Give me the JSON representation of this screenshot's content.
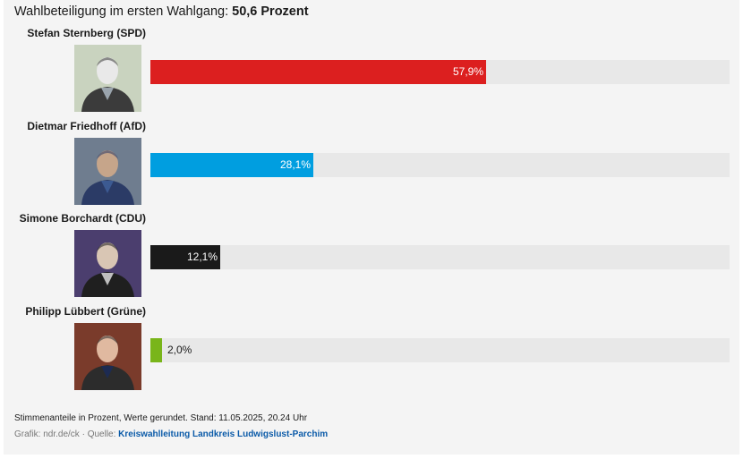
{
  "header": {
    "turnout_label": "Wahlbeteiligung im ersten Wahlgang:",
    "turnout_value": "50,6 Prozent"
  },
  "chart_data": {
    "type": "bar",
    "orientation": "horizontal",
    "xlim": [
      0,
      100
    ],
    "grid": false,
    "legend": "none",
    "categories": [
      "Stefan Sternberg (SPD)",
      "Dietmar Friedhoff (AfD)",
      "Simone Borchardt (CDU)",
      "Philipp Lübbert (Grüne)"
    ],
    "values": [
      57.9,
      28.1,
      12.1,
      2.0
    ],
    "value_labels": [
      "57,9%",
      "28,1%",
      "12,1%",
      "2,0%"
    ],
    "colors": [
      "#dc1f1f",
      "#009ee0",
      "#1a1a1a",
      "#79b51a"
    ],
    "track_color": "#e8e8e8"
  },
  "candidates": [
    {
      "name": "Stefan Sternberg (SPD)",
      "photo_icon": "portrait-photo"
    },
    {
      "name": "Dietmar Friedhoff (AfD)",
      "photo_icon": "portrait-photo"
    },
    {
      "name": "Simone Borchardt (CDU)",
      "photo_icon": "portrait-photo"
    },
    {
      "name": "Philipp Lübbert (Grüne)",
      "photo_icon": "portrait-photo"
    }
  ],
  "footer": {
    "note": "Stimmenanteile in Prozent, Werte gerundet. Stand: 11.05.2025, 20.24 Uhr",
    "credit_prefix": "Grafik: ndr.de/ck · Quelle: ",
    "source_link": "Kreiswahlleitung Landkreis Ludwigslust-Parchim"
  }
}
